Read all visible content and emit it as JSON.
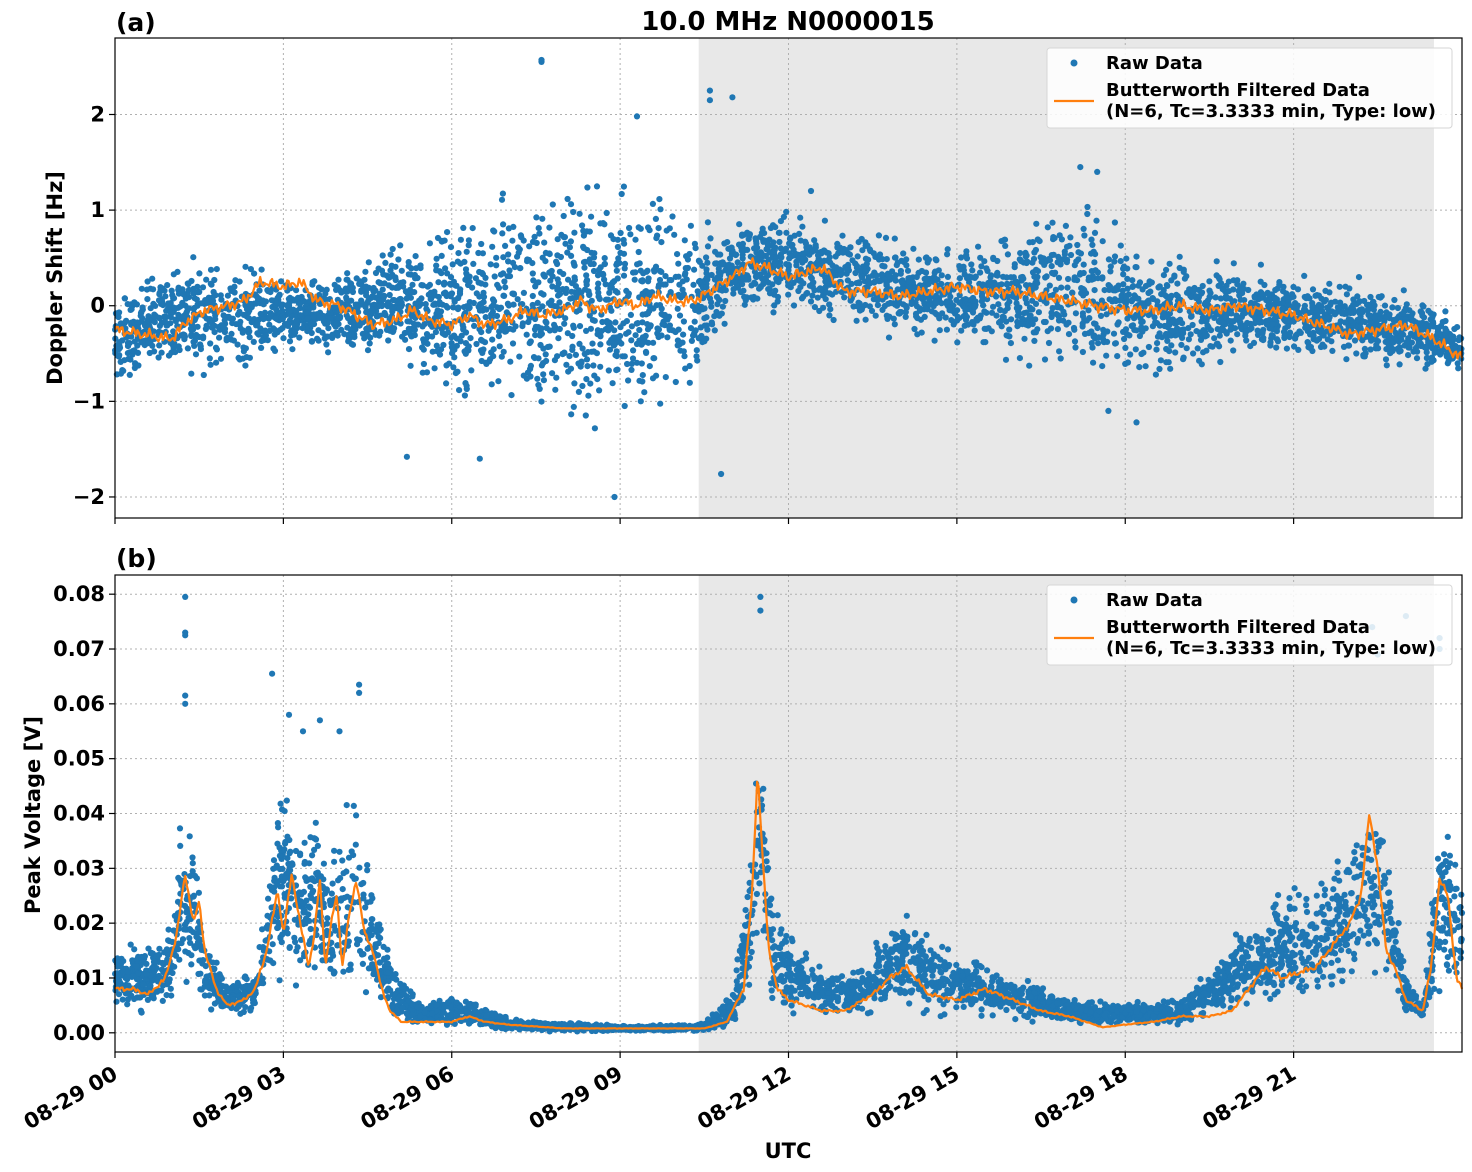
{
  "figure": {
    "title": "10.0 MHz N0000015",
    "xlabel": "UTC",
    "x_tick_labels": [
      "08-29 00",
      "08-29 03",
      "08-29 06",
      "08-29 09",
      "08-29 12",
      "08-29 15",
      "08-29 18",
      "08-29 21"
    ],
    "colors": {
      "raw": "#1f77b4",
      "filtered": "#ff7f0e",
      "band": "#e8e8e8"
    }
  },
  "legend": {
    "raw_label": "Raw Data",
    "filtered_label_line1": "Butterworth Filtered Data",
    "filtered_label_line2": "(N=6, Tc=3.3333 min, Type: low)"
  },
  "panels": [
    {
      "label": "(a)",
      "ylabel": "Doppler Shift [Hz]",
      "y_tick_labels": [
        "−2",
        "−1",
        "0",
        "1",
        "2"
      ]
    },
    {
      "label": "(b)",
      "ylabel": "Peak Voltage [V]",
      "y_tick_labels": [
        "0.00",
        "0.01",
        "0.02",
        "0.03",
        "0.04",
        "0.05",
        "0.06",
        "0.07",
        "0.08"
      ]
    }
  ],
  "chart_data": [
    {
      "type": "scatter",
      "title": "10.0 MHz N0000015",
      "panel_label": "(a)",
      "xlabel": "",
      "ylabel": "Doppler Shift [Hz]",
      "x_unit": "hours UTC on 08-29",
      "xlim": [
        0,
        24
      ],
      "ylim": [
        -2.22,
        2.8
      ],
      "yticks": [
        -2,
        -1,
        0,
        1,
        2
      ],
      "grid": true,
      "legend_position": "top-right",
      "shaded_interval_x": [
        10.4,
        23.5
      ],
      "series": [
        {
          "name": "Raw Data",
          "style": "points",
          "spread_envelope": {
            "x": [
              0,
              1,
              2,
              3,
              4,
              5,
              6,
              7,
              8,
              9,
              10,
              10.4,
              11,
              12,
              13,
              14,
              15,
              16,
              17,
              18,
              19,
              20,
              21,
              22,
              23,
              24
            ],
            "lo": [
              -0.9,
              -0.8,
              -0.9,
              -0.6,
              -0.6,
              -0.7,
              -1.1,
              -1.3,
              -1.4,
              -1.4,
              -1.3,
              -1.0,
              -0.1,
              -0.2,
              -0.3,
              -0.4,
              -0.5,
              -0.7,
              -0.9,
              -0.9,
              -0.9,
              -0.6,
              -0.6,
              -0.7,
              -0.8,
              -0.8
            ],
            "hi": [
              0.2,
              0.5,
              0.7,
              0.4,
              0.4,
              0.8,
              1.0,
              1.3,
              1.5,
              1.5,
              1.5,
              1.1,
              0.9,
              1.1,
              0.9,
              0.8,
              0.7,
              0.9,
              1.3,
              0.9,
              0.7,
              0.5,
              0.4,
              0.4,
              0.3,
              -0.1
            ]
          },
          "outliers_x": [
            7.6,
            7.6,
            10.6,
            10.6,
            11.0,
            9.3,
            8.9,
            12.4,
            17.2,
            17.5,
            18.2,
            5.2,
            6.5,
            10.8,
            17.7
          ],
          "outliers_y": [
            2.55,
            2.57,
            2.25,
            2.15,
            2.18,
            1.98,
            -2.0,
            1.2,
            1.45,
            1.4,
            -1.22,
            -1.58,
            -1.6,
            -1.76,
            -1.1
          ]
        },
        {
          "name": "Butterworth Filtered Data (N=6, Tc=3.3333 min, Type: low)",
          "style": "line",
          "x": [
            0,
            0.5,
            1,
            1.3,
            1.6,
            2.0,
            2.3,
            2.6,
            3.0,
            3.3,
            3.6,
            4.0,
            4.3,
            4.6,
            5.0,
            5.3,
            5.6,
            6.0,
            6.3,
            6.6,
            7.0,
            7.3,
            7.6,
            8.0,
            8.3,
            8.6,
            9.0,
            9.3,
            9.6,
            10.0,
            10.3,
            10.6,
            11.0,
            11.3,
            11.6,
            12.0,
            12.3,
            12.6,
            13.0,
            13.5,
            14.0,
            14.5,
            15.0,
            15.5,
            16.0,
            16.5,
            17.0,
            17.5,
            18.0,
            18.5,
            19.0,
            19.5,
            20.0,
            20.5,
            21.0,
            21.5,
            22.0,
            22.5,
            23.0,
            23.5,
            24.0
          ],
          "y": [
            -0.25,
            -0.3,
            -0.35,
            -0.15,
            -0.05,
            0.0,
            0.05,
            0.25,
            0.2,
            0.25,
            0.05,
            0.0,
            -0.1,
            -0.2,
            -0.15,
            -0.05,
            -0.15,
            -0.2,
            -0.1,
            -0.2,
            -0.15,
            -0.05,
            -0.1,
            -0.05,
            0.05,
            -0.05,
            0.05,
            0.0,
            0.1,
            0.05,
            0.05,
            0.15,
            0.3,
            0.45,
            0.4,
            0.3,
            0.35,
            0.4,
            0.15,
            0.15,
            0.1,
            0.15,
            0.2,
            0.15,
            0.15,
            0.1,
            0.05,
            0.0,
            -0.05,
            -0.05,
            0.0,
            -0.05,
            0.0,
            -0.05,
            -0.1,
            -0.2,
            -0.3,
            -0.25,
            -0.2,
            -0.35,
            -0.55
          ]
        }
      ]
    },
    {
      "type": "scatter",
      "panel_label": "(b)",
      "xlabel": "UTC",
      "ylabel": "Peak Voltage [V]",
      "x_unit": "hours UTC on 08-29",
      "xlim": [
        0,
        24
      ],
      "ylim": [
        -0.0035,
        0.0835
      ],
      "yticks": [
        0.0,
        0.01,
        0.02,
        0.03,
        0.04,
        0.05,
        0.06,
        0.07,
        0.08
      ],
      "grid": true,
      "legend_position": "top-right",
      "shaded_interval_x": [
        10.4,
        23.5
      ],
      "series": [
        {
          "name": "Raw Data",
          "style": "points",
          "spread_envelope": {
            "x": [
              0,
              0.5,
              1.0,
              1.2,
              1.4,
              1.6,
              2.0,
              2.5,
              2.8,
              3.0,
              3.3,
              3.6,
              3.8,
              4.0,
              4.3,
              4.5,
              5.0,
              5.5,
              6.0,
              7.0,
              8.0,
              9.0,
              10.0,
              10.5,
              11.0,
              11.3,
              11.5,
              11.7,
              12.0,
              12.5,
              13.0,
              13.5,
              14.0,
              14.5,
              15.0,
              15.5,
              16.0,
              17.0,
              17.5,
              18.0,
              19.0,
              19.5,
              20.0,
              20.5,
              21.0,
              21.5,
              22.0,
              22.5,
              23.0,
              23.3,
              23.6,
              24.0
            ],
            "lo": [
              0.003,
              0.003,
              0.003,
              0.005,
              0.004,
              0.003,
              0.002,
              0.003,
              0.006,
              0.005,
              0.004,
              0.005,
              0.003,
              0.005,
              0.004,
              0.003,
              0.001,
              0.0005,
              0.0005,
              0.0002,
              0.0002,
              0.0002,
              0.0002,
              0.0002,
              0.0005,
              0.004,
              0.008,
              0.004,
              0.002,
              0.002,
              0.002,
              0.002,
              0.003,
              0.002,
              0.002,
              0.002,
              0.002,
              0.001,
              0.001,
              0.001,
              0.001,
              0.002,
              0.003,
              0.003,
              0.004,
              0.003,
              0.004,
              0.005,
              0.003,
              0.002,
              0.005,
              0.005
            ],
            "hi": [
              0.017,
              0.017,
              0.02,
              0.045,
              0.04,
              0.02,
              0.01,
              0.012,
              0.04,
              0.05,
              0.04,
              0.045,
              0.035,
              0.04,
              0.05,
              0.035,
              0.012,
              0.006,
              0.008,
              0.003,
              0.002,
              0.0015,
              0.0015,
              0.002,
              0.008,
              0.035,
              0.065,
              0.03,
              0.02,
              0.014,
              0.012,
              0.016,
              0.024,
              0.02,
              0.016,
              0.013,
              0.012,
              0.007,
              0.006,
              0.006,
              0.007,
              0.012,
              0.02,
              0.023,
              0.03,
              0.03,
              0.04,
              0.05,
              0.012,
              0.005,
              0.045,
              0.03
            ]
          },
          "outliers_x": [
            1.25,
            1.25,
            1.25,
            1.25,
            1.25,
            2.8,
            3.1,
            3.35,
            3.65,
            4.0,
            4.35,
            4.35,
            11.5,
            11.5,
            22.4,
            22.5,
            23.0,
            23.6,
            23.6
          ],
          "outliers_y": [
            0.0795,
            0.073,
            0.0725,
            0.0615,
            0.06,
            0.0655,
            0.058,
            0.055,
            0.057,
            0.055,
            0.0635,
            0.062,
            0.0795,
            0.077,
            0.074,
            0.069,
            0.076,
            0.072,
            0.07
          ]
        },
        {
          "name": "Butterworth Filtered Data (N=6, Tc=3.3333 min, Type: low)",
          "style": "line",
          "x": [
            0,
            0.3,
            0.6,
            0.9,
            1.1,
            1.25,
            1.4,
            1.5,
            1.6,
            1.8,
            2.0,
            2.3,
            2.5,
            2.7,
            2.9,
            3.0,
            3.15,
            3.3,
            3.45,
            3.55,
            3.65,
            3.75,
            3.85,
            3.95,
            4.05,
            4.15,
            4.3,
            4.45,
            4.6,
            4.75,
            4.9,
            5.1,
            5.5,
            6.0,
            6.3,
            6.6,
            7.0,
            8.0,
            9.0,
            10.0,
            10.5,
            10.9,
            11.2,
            11.35,
            11.45,
            11.55,
            11.65,
            11.8,
            12.0,
            12.3,
            12.6,
            13.0,
            13.5,
            13.8,
            14.1,
            14.5,
            15.0,
            15.5,
            16.0,
            16.5,
            17.0,
            17.3,
            17.6,
            18.0,
            18.5,
            19.0,
            19.5,
            19.9,
            20.2,
            20.5,
            20.8,
            21.1,
            21.4,
            21.7,
            22.0,
            22.2,
            22.35,
            22.5,
            22.65,
            22.8,
            23.0,
            23.3,
            23.45,
            23.6,
            23.75,
            23.9,
            24.0
          ],
          "y": [
            0.008,
            0.008,
            0.007,
            0.01,
            0.018,
            0.029,
            0.02,
            0.024,
            0.015,
            0.008,
            0.005,
            0.006,
            0.008,
            0.015,
            0.026,
            0.018,
            0.029,
            0.02,
            0.012,
            0.018,
            0.028,
            0.012,
            0.02,
            0.025,
            0.012,
            0.02,
            0.028,
            0.018,
            0.015,
            0.008,
            0.004,
            0.002,
            0.002,
            0.002,
            0.003,
            0.002,
            0.0015,
            0.0008,
            0.0008,
            0.0008,
            0.0008,
            0.002,
            0.008,
            0.025,
            0.048,
            0.03,
            0.015,
            0.008,
            0.006,
            0.005,
            0.004,
            0.004,
            0.007,
            0.01,
            0.012,
            0.007,
            0.006,
            0.008,
            0.006,
            0.004,
            0.003,
            0.002,
            0.001,
            0.0015,
            0.002,
            0.003,
            0.003,
            0.004,
            0.008,
            0.012,
            0.01,
            0.011,
            0.012,
            0.016,
            0.02,
            0.025,
            0.04,
            0.03,
            0.015,
            0.012,
            0.006,
            0.004,
            0.012,
            0.028,
            0.025,
            0.01,
            0.008
          ]
        }
      ]
    }
  ]
}
